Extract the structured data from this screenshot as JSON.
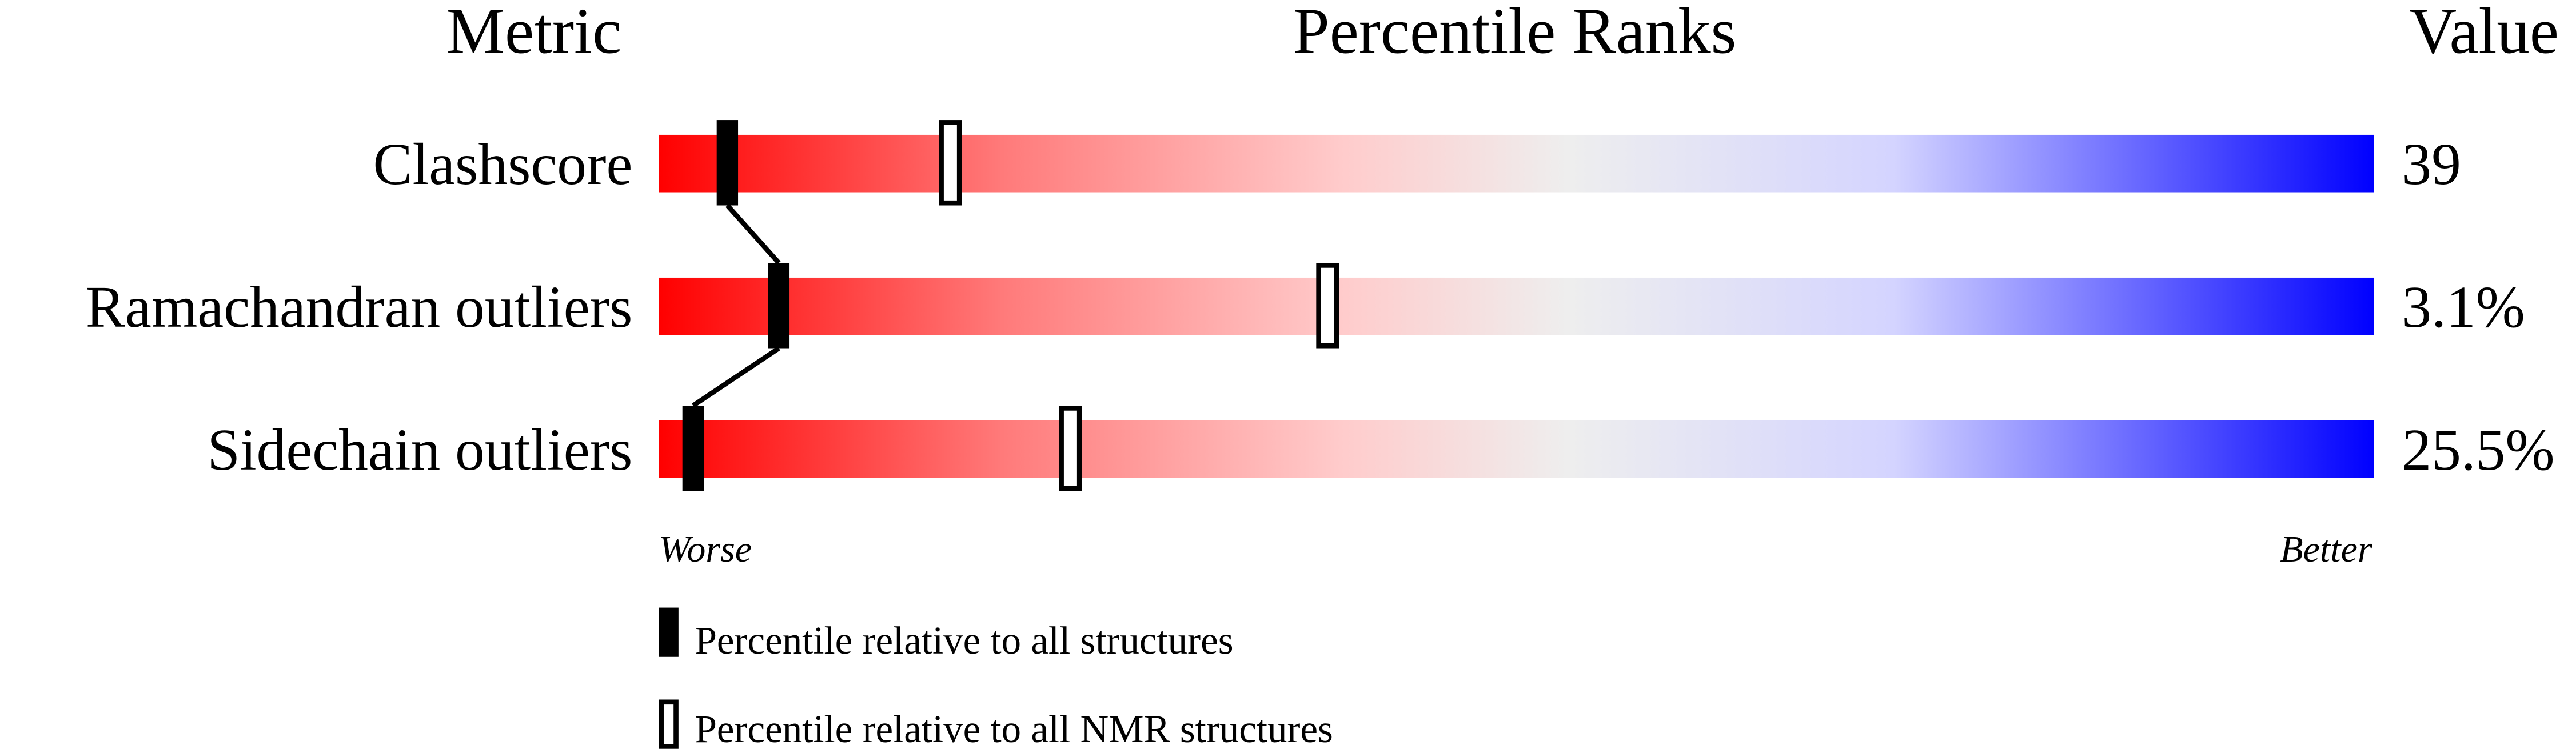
{
  "chart_data": {
    "type": "percentile-slider",
    "headers": {
      "metric": "Metric",
      "ranks": "Percentile Ranks",
      "value": "Value"
    },
    "xlim": [
      0,
      100
    ],
    "rows": [
      {
        "metric": "Clashscore",
        "value": "39",
        "percentile_all": 4,
        "percentile_nmr": 17
      },
      {
        "metric": "Ramachandran outliers",
        "value": "3.1%",
        "percentile_all": 7,
        "percentile_nmr": 39
      },
      {
        "metric": "Sidechain outliers",
        "value": "25.5%",
        "percentile_all": 2,
        "percentile_nmr": 24
      }
    ],
    "axis": {
      "left": "Worse",
      "right": "Better"
    },
    "legend": {
      "all": "Percentile relative to all structures",
      "nmr": "Percentile relative to all NMR structures"
    },
    "colors": {
      "worse": "#ff0000",
      "middle": "#eeeeee",
      "better": "#0000ff",
      "marker": "#000000"
    }
  }
}
